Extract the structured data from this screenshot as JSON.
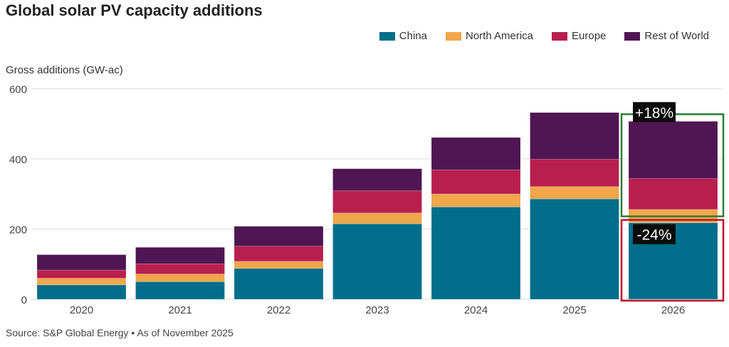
{
  "chart_data": {
    "type": "bar",
    "stacked": true,
    "title": "Global solar PV capacity additions",
    "ylabel": "Gross additions (GW-ac)",
    "xlabel": "",
    "ylim": [
      0,
      600
    ],
    "yticks": [
      0,
      200,
      400,
      600
    ],
    "grid": true,
    "legend_position": "top-right",
    "categories": [
      "2020",
      "2021",
      "2022",
      "2023",
      "2024",
      "2025",
      "2026"
    ],
    "series": [
      {
        "name": "China",
        "color": "#006e8a",
        "values": [
          41,
          50,
          88,
          215,
          263,
          286,
          218
        ]
      },
      {
        "name": "North America",
        "color": "#f0a64a",
        "values": [
          19,
          22,
          20,
          31,
          37,
          35,
          38
        ]
      },
      {
        "name": "Europe",
        "color": "#b81f4f",
        "values": [
          23,
          29,
          43,
          63,
          69,
          78,
          88
        ]
      },
      {
        "name": "Rest of World",
        "color": "#501553",
        "values": [
          44,
          47,
          57,
          63,
          92,
          133,
          163
        ]
      }
    ],
    "annotations": [
      {
        "text": "+18%",
        "box_color": "#2e7d32",
        "target": "2026 non-China"
      },
      {
        "text": "-24%",
        "box_color": "#c0102c",
        "target": "2026 China"
      }
    ]
  },
  "source": "Source: S&P Global Energy • As of November 2025"
}
